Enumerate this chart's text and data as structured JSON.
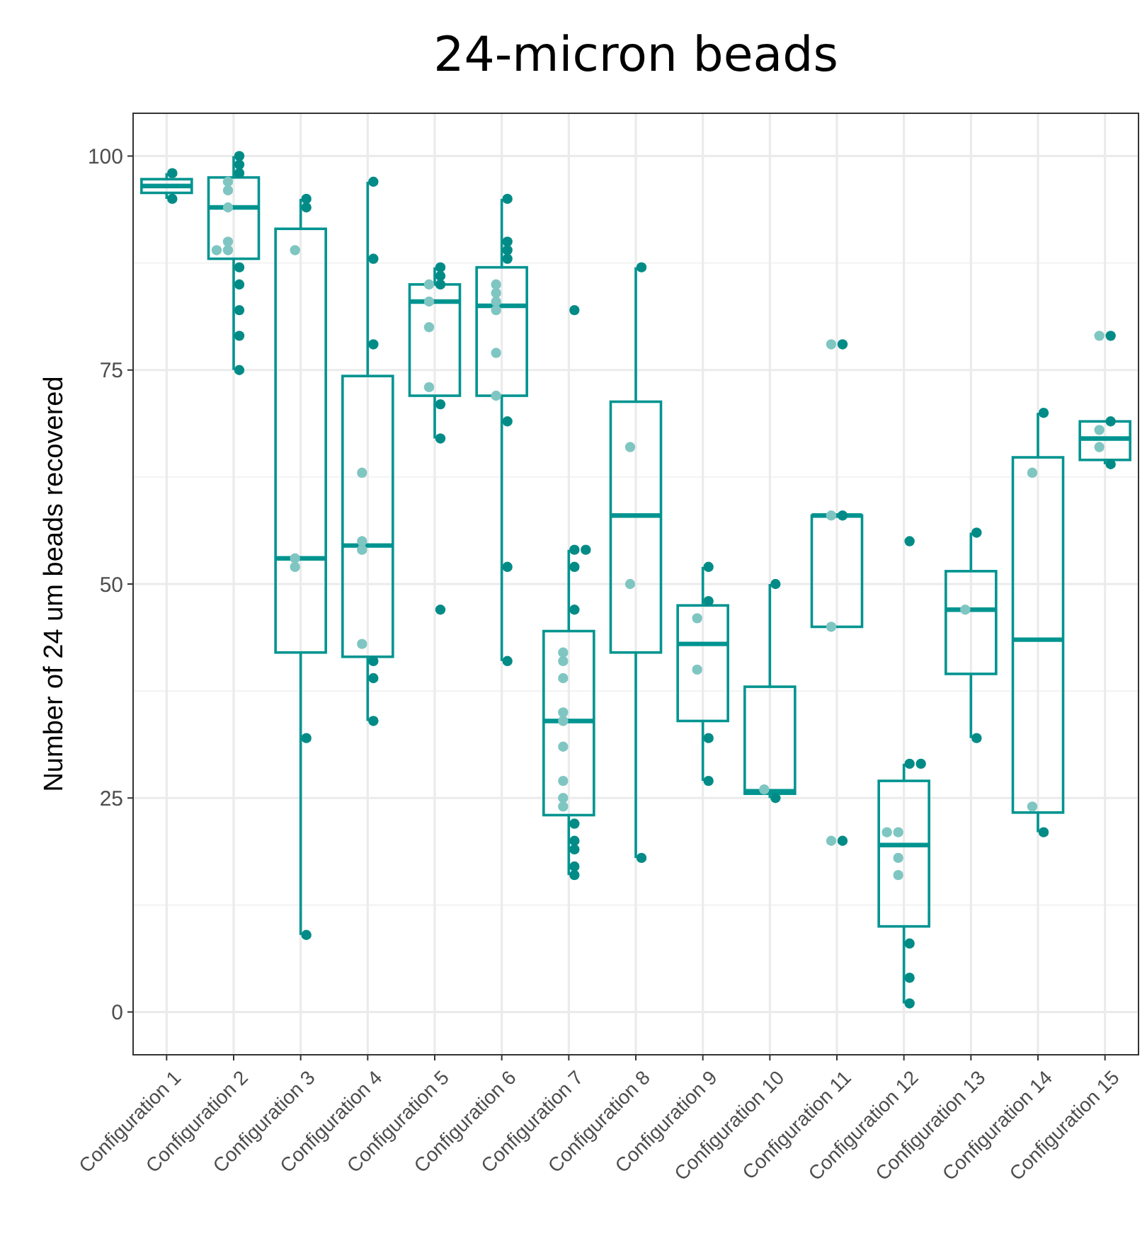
{
  "chart_data": {
    "type": "box",
    "title": "24-micron beads",
    "ylabel": "Number of 24 um beads recovered",
    "categories": [
      "Configuration 1",
      "Configuration 2",
      "Configuration 3",
      "Configuration 4",
      "Configuration 5",
      "Configuration 6",
      "Configuration 7",
      "Configuration 8",
      "Configuration 9",
      "Configuration 10",
      "Configuration 11",
      "Configuration 12",
      "Configuration 13",
      "Configuration 14",
      "Configuration 15"
    ],
    "ylim": [
      -5,
      105
    ],
    "yticks": [
      0,
      25,
      50,
      75,
      100
    ],
    "grid": true,
    "series": [
      {
        "color": "#009490",
        "boxes": [
          {
            "low": 95,
            "q1": 95.7,
            "median": 96.5,
            "q3": 97.3,
            "high": 98
          },
          {
            "low": 75,
            "q1": 88,
            "median": 94,
            "q3": 97.5,
            "high": 100
          },
          {
            "low": 9,
            "q1": 42,
            "median": 53,
            "q3": 91.5,
            "high": 95
          },
          {
            "low": 34,
            "q1": 41.5,
            "median": 54.5,
            "q3": 74.3,
            "high": 97
          },
          {
            "low": 67,
            "q1": 72,
            "median": 83,
            "q3": 85,
            "high": 87
          },
          {
            "low": 41,
            "q1": 72,
            "median": 82.5,
            "q3": 87,
            "high": 95
          },
          {
            "low": 16,
            "q1": 23,
            "median": 34,
            "q3": 44.5,
            "high": 54
          },
          {
            "low": 18,
            "q1": 42,
            "median": 58,
            "q3": 71.3,
            "high": 87
          },
          {
            "low": 27,
            "q1": 34,
            "median": 43,
            "q3": 47.5,
            "high": 52
          },
          {
            "low": 25,
            "q1": 25.5,
            "median": 25.8,
            "q3": 38,
            "high": 50
          },
          {
            "low": 45,
            "q1": 45,
            "median": 58,
            "q3": 58,
            "high": 58
          },
          {
            "low": 1,
            "q1": 10,
            "median": 19.5,
            "q3": 27,
            "high": 29
          },
          {
            "low": 32,
            "q1": 39.5,
            "median": 47,
            "q3": 51.5,
            "high": 56
          },
          {
            "low": 21,
            "q1": 23.3,
            "median": 43.5,
            "q3": 64.8,
            "high": 70
          },
          {
            "low": 64,
            "q1": 64.5,
            "median": 67,
            "q3": 69,
            "high": 69
          }
        ]
      },
      {
        "type": "scatter",
        "color": "#7fc6c2",
        "x": [
          "Configuration 2",
          "Configuration 2",
          "Configuration 2",
          "Configuration 2",
          "Configuration 2",
          "Configuration 2",
          "Configuration 3",
          "Configuration 3",
          "Configuration 3",
          "Configuration 4",
          "Configuration 4",
          "Configuration 4",
          "Configuration 4",
          "Configuration 5",
          "Configuration 5",
          "Configuration 5",
          "Configuration 5",
          "Configuration 6",
          "Configuration 6",
          "Configuration 6",
          "Configuration 6",
          "Configuration 6",
          "Configuration 6",
          "Configuration 7",
          "Configuration 7",
          "Configuration 7",
          "Configuration 7",
          "Configuration 7",
          "Configuration 7",
          "Configuration 7",
          "Configuration 7",
          "Configuration 7",
          "Configuration 8",
          "Configuration 8",
          "Configuration 9",
          "Configuration 9",
          "Configuration 10",
          "Configuration 11",
          "Configuration 11",
          "Configuration 11",
          "Configuration 11",
          "Configuration 12",
          "Configuration 12",
          "Configuration 12",
          "Configuration 12",
          "Configuration 13",
          "Configuration 14",
          "Configuration 14",
          "Configuration 15",
          "Configuration 15",
          "Configuration 15"
        ],
        "values": [
          97,
          96,
          94,
          90,
          89,
          89,
          89,
          53,
          52,
          63,
          55,
          54,
          43,
          85,
          83,
          80,
          73,
          85,
          84,
          83,
          82,
          77,
          72,
          42,
          41,
          39,
          35,
          34,
          31,
          27,
          25,
          24,
          66,
          50,
          46,
          40,
          26,
          78,
          58,
          45,
          20,
          21,
          21,
          18,
          16,
          47,
          63,
          24,
          79,
          68,
          66
        ]
      },
      {
        "type": "scatter",
        "color": "#008b87",
        "x": [
          "Configuration 1",
          "Configuration 1",
          "Configuration 2",
          "Configuration 2",
          "Configuration 2",
          "Configuration 2",
          "Configuration 2",
          "Configuration 2",
          "Configuration 2",
          "Configuration 2",
          "Configuration 3",
          "Configuration 3",
          "Configuration 3",
          "Configuration 3",
          "Configuration 4",
          "Configuration 4",
          "Configuration 4",
          "Configuration 4",
          "Configuration 4",
          "Configuration 4",
          "Configuration 5",
          "Configuration 5",
          "Configuration 5",
          "Configuration 5",
          "Configuration 5",
          "Configuration 5",
          "Configuration 6",
          "Configuration 6",
          "Configuration 6",
          "Configuration 6",
          "Configuration 6",
          "Configuration 6",
          "Configuration 6",
          "Configuration 7",
          "Configuration 7",
          "Configuration 7",
          "Configuration 7",
          "Configuration 7",
          "Configuration 7",
          "Configuration 7",
          "Configuration 7",
          "Configuration 7",
          "Configuration 7",
          "Configuration 8",
          "Configuration 8",
          "Configuration 9",
          "Configuration 9",
          "Configuration 9",
          "Configuration 9",
          "Configuration 10",
          "Configuration 10",
          "Configuration 11",
          "Configuration 11",
          "Configuration 11",
          "Configuration 12",
          "Configuration 12",
          "Configuration 12",
          "Configuration 12",
          "Configuration 12",
          "Configuration 12",
          "Configuration 13",
          "Configuration 13",
          "Configuration 14",
          "Configuration 14",
          "Configuration 15",
          "Configuration 15",
          "Configuration 15"
        ],
        "values": [
          98,
          95,
          100,
          99,
          98,
          87,
          85,
          82,
          79,
          75,
          95,
          94,
          32,
          9,
          97,
          88,
          78,
          41,
          39,
          34,
          87,
          86,
          85,
          71,
          67,
          47,
          95,
          90,
          89,
          88,
          69,
          52,
          41,
          82,
          54,
          54,
          52,
          47,
          22,
          20,
          19,
          17,
          16,
          87,
          18,
          52,
          48,
          32,
          27,
          50,
          25,
          78,
          58,
          20,
          55,
          29,
          29,
          8,
          4,
          1,
          56,
          32,
          70,
          21,
          79,
          69,
          64
        ]
      }
    ]
  }
}
